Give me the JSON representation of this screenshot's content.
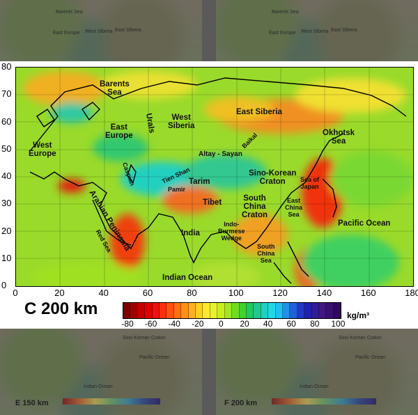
{
  "background_panels": {
    "top_left": {
      "labels": [
        "Barents Sea",
        "East Siberia",
        "East Europe",
        "West Siberia"
      ]
    },
    "top_right": {
      "labels": [
        "Barents Sea",
        "East Siberia",
        "East Europe",
        "West Siberia"
      ]
    },
    "bottom_left": {
      "caption": "E 150 km",
      "labels": [
        "Pacific Ocean",
        "Indian Ocean",
        "Sino-Korean Craton"
      ]
    },
    "bottom_right": {
      "caption": "F 200 km",
      "labels": [
        "Pacific Ocean",
        "Indian Ocean",
        "Sino-Korean Craton"
      ]
    }
  },
  "main_panel": {
    "title": "C 200 km",
    "x_ticks": [
      "0",
      "20",
      "40",
      "60",
      "80",
      "100",
      "120",
      "140",
      "160",
      "180"
    ],
    "y_ticks": [
      "80",
      "70",
      "60",
      "50",
      "40",
      "30",
      "20",
      "10",
      "0"
    ],
    "labels": [
      {
        "id": "barents-sea",
        "text": "Barents\nSea"
      },
      {
        "id": "east-siberia",
        "text": "East Siberia"
      },
      {
        "id": "west-siberia",
        "text": "West\nSiberia"
      },
      {
        "id": "east-europe",
        "text": "East\nEurope"
      },
      {
        "id": "west-europe",
        "text": "West\nEurope"
      },
      {
        "id": "urals",
        "text": "Urals"
      },
      {
        "id": "baikal",
        "text": "Baikal"
      },
      {
        "id": "okhotsk-sea",
        "text": "Okhotsk\nSea"
      },
      {
        "id": "altay-sayan",
        "text": "Altay - Sayan"
      },
      {
        "id": "caspian",
        "text": "Caspian"
      },
      {
        "id": "tien-shan",
        "text": "Tien Shan"
      },
      {
        "id": "pamir",
        "text": "Pamir"
      },
      {
        "id": "tarim",
        "text": "Tarim"
      },
      {
        "id": "sino-korean",
        "text": "Sino-Korean\nCraton"
      },
      {
        "id": "sea-of-japan",
        "text": "Sea of\nJapan"
      },
      {
        "id": "tibet",
        "text": "Tibet"
      },
      {
        "id": "south-china-craton",
        "text": "South\nChina\nCraton"
      },
      {
        "id": "east-china-sea",
        "text": "East\nChina\nSea"
      },
      {
        "id": "arabian-peninsula",
        "text": "Arabian Peninsula"
      },
      {
        "id": "red-sea",
        "text": "Red Sea"
      },
      {
        "id": "india",
        "text": "India"
      },
      {
        "id": "indo-burmese",
        "text": "Indo-\nBurmese\nWedge"
      },
      {
        "id": "pacific-ocean",
        "text": "Pacific Ocean"
      },
      {
        "id": "south-china-sea",
        "text": "South\nChina\nSea"
      },
      {
        "id": "indian-ocean",
        "text": "Indian Ocean"
      }
    ],
    "colorbar": {
      "ticks": [
        "-80",
        "-60",
        "-40",
        "-20",
        "0",
        "20",
        "40",
        "60",
        "80",
        "100"
      ],
      "unit": "kg/m³",
      "colors": [
        "#7a0000",
        "#a00000",
        "#c80000",
        "#e00000",
        "#f01010",
        "#f83010",
        "#ff5010",
        "#ff7010",
        "#ff9010",
        "#ffb020",
        "#ffcf20",
        "#ffea30",
        "#e8f030",
        "#c8ee20",
        "#a0e820",
        "#70dd20",
        "#40d030",
        "#20c860",
        "#20c890",
        "#20d0c0",
        "#20d8e8",
        "#20c0f0",
        "#2090e8",
        "#2060d8",
        "#2038c8",
        "#2020b0",
        "#301c98",
        "#401880",
        "#381070",
        "#300860"
      ]
    }
  }
}
